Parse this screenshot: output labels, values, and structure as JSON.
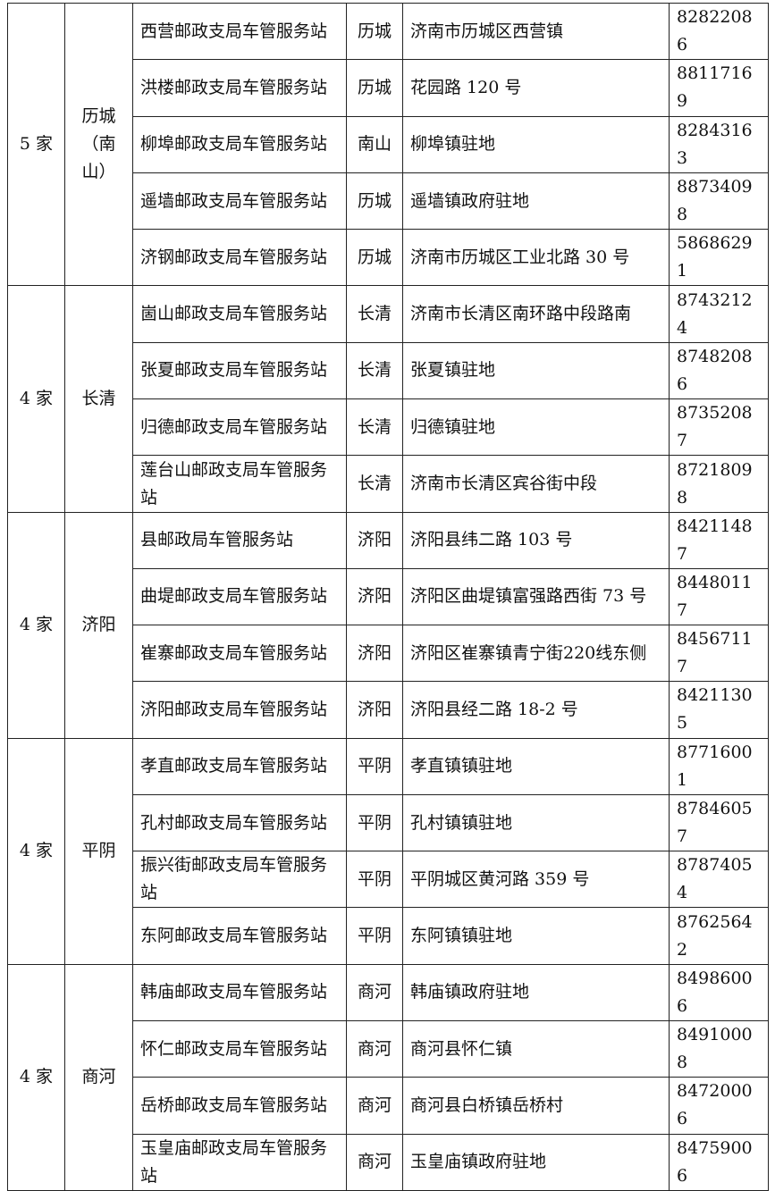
{
  "table": {
    "groups": [
      {
        "count": "5 家",
        "region": "历城（南山）",
        "rows": [
          {
            "name": "西营邮政支局车管服务站",
            "area": "历城",
            "address": "济南市历城区西营镇",
            "phone": "82822086"
          },
          {
            "name": "洪楼邮政支局车管服务站",
            "area": "历城",
            "address": "花园路 120 号",
            "phone": "88117169"
          },
          {
            "name": "柳埠邮政支局车管服务站",
            "area": "南山",
            "address": "柳埠镇驻地",
            "phone": "82843163"
          },
          {
            "name": "遥墙邮政支局车管服务站",
            "area": "历城",
            "address": "遥墙镇政府驻地",
            "phone": "88734098"
          },
          {
            "name": "济钢邮政支局车管服务站",
            "area": "历城",
            "address": "济南市历城区工业北路 30 号",
            "phone": "58686291"
          }
        ]
      },
      {
        "count": "4 家",
        "region": "长清",
        "rows": [
          {
            "name": "崮山邮政支局车管服务站",
            "area": "长清",
            "address": "济南市长清区南环路中段路南",
            "phone": "87432124"
          },
          {
            "name": "张夏邮政支局车管服务站",
            "area": "长清",
            "address": "张夏镇驻地",
            "phone": "87482086"
          },
          {
            "name": "归德邮政支局车管服务站",
            "area": "长清",
            "address": "归德镇驻地",
            "phone": "87352087"
          },
          {
            "name": "莲台山邮政支局车管服务站",
            "area": "长清",
            "address": "济南市长清区宾谷街中段",
            "phone": "87218098"
          }
        ]
      },
      {
        "count": "4 家",
        "region": "济阳",
        "rows": [
          {
            "name": "县邮政局车管服务站",
            "area": "济阳",
            "address": "济阳县纬二路 103 号",
            "phone": "84211487"
          },
          {
            "name": "曲堤邮政支局车管服务站",
            "area": "济阳",
            "address": "济阳区曲堤镇富强路西街 73 号",
            "phone": "84480117"
          },
          {
            "name": "崔寨邮政支局车管服务站",
            "area": "济阳",
            "address": "济阳区崔寨镇青宁街220线东侧",
            "phone": "84567117"
          },
          {
            "name": "济阳邮政支局车管服务站",
            "area": "济阳",
            "address": "济阳县经二路 18-2 号",
            "phone": "84211305"
          }
        ]
      },
      {
        "count": "4 家",
        "region": "平阴",
        "rows": [
          {
            "name": "孝直邮政支局车管服务站",
            "area": "平阴",
            "address": "孝直镇镇驻地",
            "phone": "87716001"
          },
          {
            "name": "孔村邮政支局车管服务站",
            "area": "平阴",
            "address": "孔村镇镇驻地",
            "phone": "87846057"
          },
          {
            "name": "振兴街邮政支局车管服务站",
            "area": "平阴",
            "address": "平阴城区黄河路 359 号",
            "phone": "87874054"
          },
          {
            "name": "东阿邮政支局车管服务站",
            "area": "平阴",
            "address": "东阿镇镇驻地",
            "phone": "87625642"
          }
        ]
      },
      {
        "count": "4 家",
        "region": "商河",
        "rows": [
          {
            "name": "韩庙邮政支局车管服务站",
            "area": "商河",
            "address": "韩庙镇政府驻地",
            "phone": "84986006"
          },
          {
            "name": "怀仁邮政支局车管服务站",
            "area": "商河",
            "address": "商河县怀仁镇",
            "phone": "84910008"
          },
          {
            "name": "岳桥邮政支局车管服务站",
            "area": "商河",
            "address": "商河县白桥镇岳桥村",
            "phone": "84720006"
          },
          {
            "name": "玉皇庙邮政支局车管服务站",
            "area": "商河",
            "address": "玉皇庙镇政府驻地",
            "phone": "84759006"
          }
        ]
      }
    ]
  }
}
